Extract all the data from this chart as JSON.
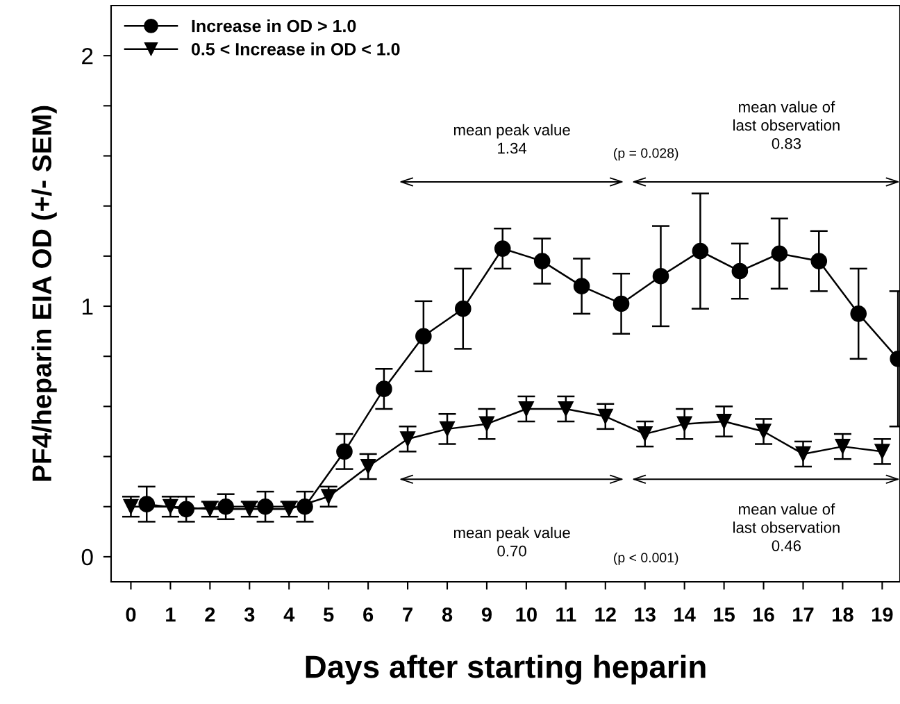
{
  "chart_data": {
    "type": "line",
    "xlabel": "Days after starting heparin",
    "ylabel": "PF4/heparin EIA OD (+/- SEM)",
    "xlim": [
      -0.5,
      19.45
    ],
    "xticks": [
      0,
      1,
      2,
      3,
      4,
      5,
      6,
      7,
      8,
      9,
      10,
      11,
      12,
      13,
      14,
      15,
      16,
      17,
      18,
      19
    ],
    "ylim": [
      -0.1,
      2.2
    ],
    "yticks": [
      0,
      {
        "value": 0.2,
        "label": null
      },
      {
        "value": 0.4,
        "label": null
      },
      {
        "value": 0.6,
        "label": null
      },
      {
        "value": 0.8,
        "label": null
      },
      1,
      {
        "value": 1.2,
        "label": null
      },
      {
        "value": 1.4,
        "label": null
      },
      {
        "value": 1.6,
        "label": null
      },
      {
        "value": 1.8,
        "label": null
      },
      2
    ],
    "grid": false,
    "legend": "top left",
    "line_style": "solid",
    "series": [
      {
        "name": "Increase in OD > 1.0",
        "color": "#000000",
        "marker": "circle",
        "x": [
          0.4,
          1.4,
          2.4,
          3.4,
          4.4,
          5.4,
          6.4,
          7.4,
          8.4,
          9.4,
          10.4,
          11.4,
          12.4,
          13.4,
          14.4,
          15.4,
          16.4,
          17.4,
          18.4,
          19.4
        ],
        "values": [
          0.21,
          0.19,
          0.2,
          0.2,
          0.2,
          0.42,
          0.67,
          0.88,
          0.99,
          1.23,
          1.18,
          1.08,
          1.01,
          1.12,
          1.22,
          1.14,
          1.21,
          1.18,
          0.97,
          0.79
        ],
        "errors": [
          0.07,
          0.05,
          0.05,
          0.06,
          0.06,
          0.07,
          0.08,
          0.14,
          0.16,
          0.08,
          0.09,
          0.11,
          0.12,
          0.2,
          0.23,
          0.11,
          0.14,
          0.12,
          0.18,
          0.27
        ]
      },
      {
        "name": "0.5 < Increase in OD < 1.0",
        "color": "#000000",
        "marker": "triangle",
        "x": [
          0,
          1,
          2,
          3,
          4,
          5,
          6,
          7,
          8,
          9,
          10,
          11,
          12,
          13,
          14,
          15,
          16,
          17,
          18,
          19
        ],
        "values": [
          0.2,
          0.2,
          0.19,
          0.19,
          0.19,
          0.24,
          0.36,
          0.47,
          0.51,
          0.53,
          0.59,
          0.59,
          0.56,
          0.49,
          0.53,
          0.54,
          0.5,
          0.41,
          0.44,
          0.42
        ],
        "errors": [
          0.04,
          0.04,
          0.03,
          0.03,
          0.03,
          0.04,
          0.05,
          0.05,
          0.06,
          0.06,
          0.05,
          0.05,
          0.05,
          0.05,
          0.06,
          0.06,
          0.05,
          0.05,
          0.05,
          0.05
        ]
      }
    ],
    "annotations": [
      "mean peak value\n1.34",
      "(p = 0.028)",
      "mean value of\nlast observation\n0.83",
      "mean peak value\n0.70",
      "(p < 0.001)",
      "mean value of\nlast observation\n0.46"
    ]
  }
}
